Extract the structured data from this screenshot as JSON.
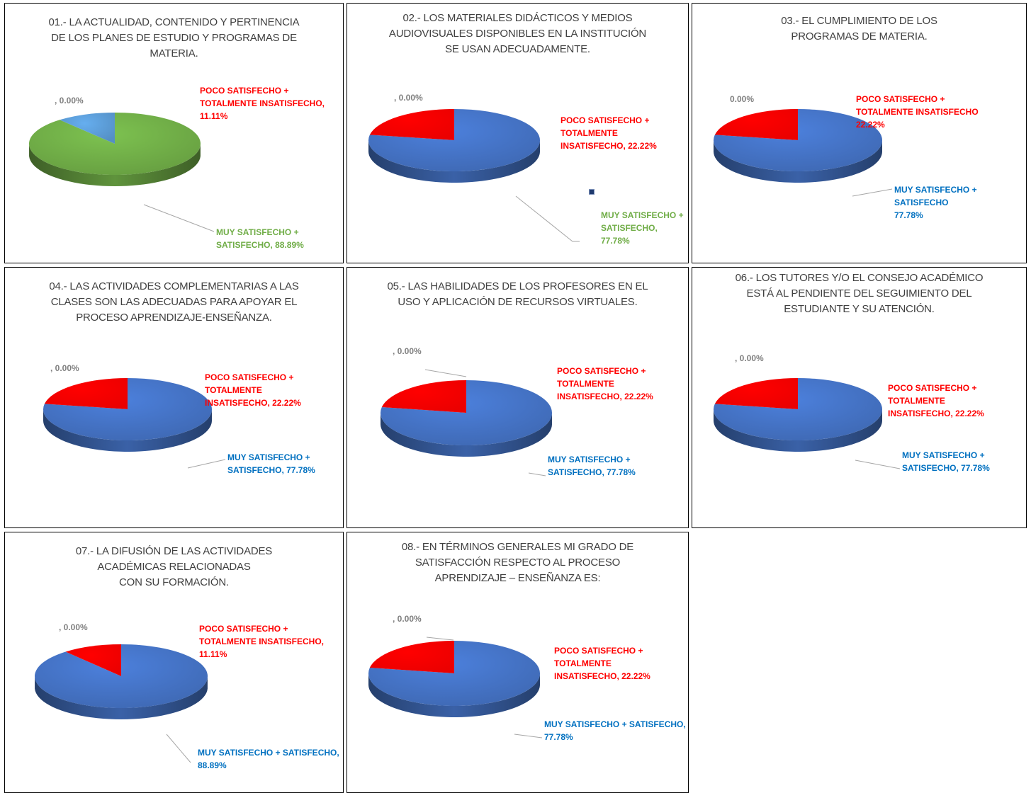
{
  "colors": {
    "blue": "#4472c4",
    "green": "#70ad47",
    "red": "#ff0000",
    "zero_label": "#7f7f7f",
    "blue_label": "#0070c0",
    "green_label": "#70ad47"
  },
  "chart_data": [
    {
      "type": "pie",
      "title": "01.- LA ACTUALIDAD, CONTENIDO Y PERTINENCIA\nDE LOS PLANES DE ESTUDIO Y PROGRAMAS DE\nMATERIA.",
      "slices": [
        {
          "label": ", 0.00%",
          "value": 0.0,
          "color": "#7f7f7f"
        },
        {
          "label": "POCO SATISFECHO +\nTOTALMENTE INSATISFECHO,\n11.11%",
          "value": 11.11,
          "color": "#5b9bd5"
        },
        {
          "label": "MUY SATISFECHO +\nSATISFECHO, 88.89%",
          "value": 88.89,
          "color": "#70ad47"
        }
      ]
    },
    {
      "type": "pie",
      "title": "02.- LOS MATERIALES DIDÁCTICOS Y MEDIOS\nAUDIOVISUALES DISPONIBLES EN LA INSTITUCIÓN\nSE USAN ADECUADAMENTE.",
      "slices": [
        {
          "label": ", 0.00%",
          "value": 0.0,
          "color": "#7f7f7f"
        },
        {
          "label": "POCO SATISFECHO +\nTOTALMENTE\nINSATISFECHO, 22.22%",
          "value": 22.22,
          "color": "#ff0000"
        },
        {
          "label": "MUY SATISFECHO +\nSATISFECHO, 77.78%",
          "value": 77.78,
          "color": "#4472c4"
        }
      ]
    },
    {
      "type": "pie",
      "title": "03.- EL CUMPLIMIENTO DE LOS\nPROGRAMAS DE MATERIA.",
      "slices": [
        {
          "label": "0.00%",
          "value": 0.0,
          "color": "#7f7f7f"
        },
        {
          "label": "POCO SATISFECHO +\nTOTALMENTE INSATISFECHO\n22.22%",
          "value": 22.22,
          "color": "#ff0000"
        },
        {
          "label": "MUY SATISFECHO +\nSATISFECHO\n77.78%",
          "value": 77.78,
          "color": "#4472c4"
        }
      ]
    },
    {
      "type": "pie",
      "title": "04.- LAS ACTIVIDADES COMPLEMENTARIAS A LAS\nCLASES SON LAS ADECUADAS PARA APOYAR EL\nPROCESO APRENDIZAJE-ENSEÑANZA.",
      "slices": [
        {
          "label": ", 0.00%",
          "value": 0.0,
          "color": "#7f7f7f"
        },
        {
          "label": "POCO SATISFECHO +\nTOTALMENTE\nINSATISFECHO, 22.22%",
          "value": 22.22,
          "color": "#ff0000"
        },
        {
          "label": "MUY SATISFECHO +\nSATISFECHO, 77.78%",
          "value": 77.78,
          "color": "#4472c4"
        }
      ]
    },
    {
      "type": "pie",
      "title": "05.- LAS HABILIDADES DE LOS PROFESORES EN EL\nUSO Y APLICACIÓN DE RECURSOS VIRTUALES.",
      "slices": [
        {
          "label": ", 0.00%",
          "value": 0.0,
          "color": "#7f7f7f"
        },
        {
          "label": "POCO SATISFECHO +\nTOTALMENTE\nINSATISFECHO, 22.22%",
          "value": 22.22,
          "color": "#ff0000"
        },
        {
          "label": "MUY SATISFECHO +\nSATISFECHO, 77.78%",
          "value": 77.78,
          "color": "#4472c4"
        }
      ]
    },
    {
      "type": "pie",
      "title": "06.- LOS TUTORES Y/O EL CONSEJO ACADÉMICO\nESTÁ AL PENDIENTE DEL SEGUIMIENTO DEL\nESTUDIANTE Y SU ATENCIÓN.",
      "slices": [
        {
          "label": ", 0.00%",
          "value": 0.0,
          "color": "#7f7f7f"
        },
        {
          "label": "POCO SATISFECHO +\nTOTALMENTE\nINSATISFECHO, 22.22%",
          "value": 22.22,
          "color": "#ff0000"
        },
        {
          "label": "MUY SATISFECHO +\nSATISFECHO, 77.78%",
          "value": 77.78,
          "color": "#4472c4"
        }
      ]
    },
    {
      "type": "pie",
      "title": "07.- LA DIFUSIÓN DE LAS ACTIVIDADES\nACADÉMICAS RELACIONADAS\nCON SU FORMACIÓN.",
      "slices": [
        {
          "label": ", 0.00%",
          "value": 0.0,
          "color": "#7f7f7f"
        },
        {
          "label": "POCO SATISFECHO +\nTOTALMENTE INSATISFECHO,\n11.11%",
          "value": 11.11,
          "color": "#ff0000"
        },
        {
          "label": "MUY SATISFECHO + SATISFECHO,\n88.89%",
          "value": 88.89,
          "color": "#4472c4"
        }
      ]
    },
    {
      "type": "pie",
      "title": "08.- EN TÉRMINOS GENERALES MI GRADO DE\nSATISFACCIÓN  RESPECTO AL PROCESO\nAPRENDIZAJE – ENSEÑANZA ES:",
      "slices": [
        {
          "label": ", 0.00%",
          "value": 0.0,
          "color": "#7f7f7f"
        },
        {
          "label": "POCO SATISFECHO +\nTOTALMENTE\nINSATISFECHO, 22.22%",
          "value": 22.22,
          "color": "#ff0000"
        },
        {
          "label": "MUY SATISFECHO + SATISFECHO,\n77.78%",
          "value": 77.78,
          "color": "#4472c4"
        }
      ]
    }
  ]
}
